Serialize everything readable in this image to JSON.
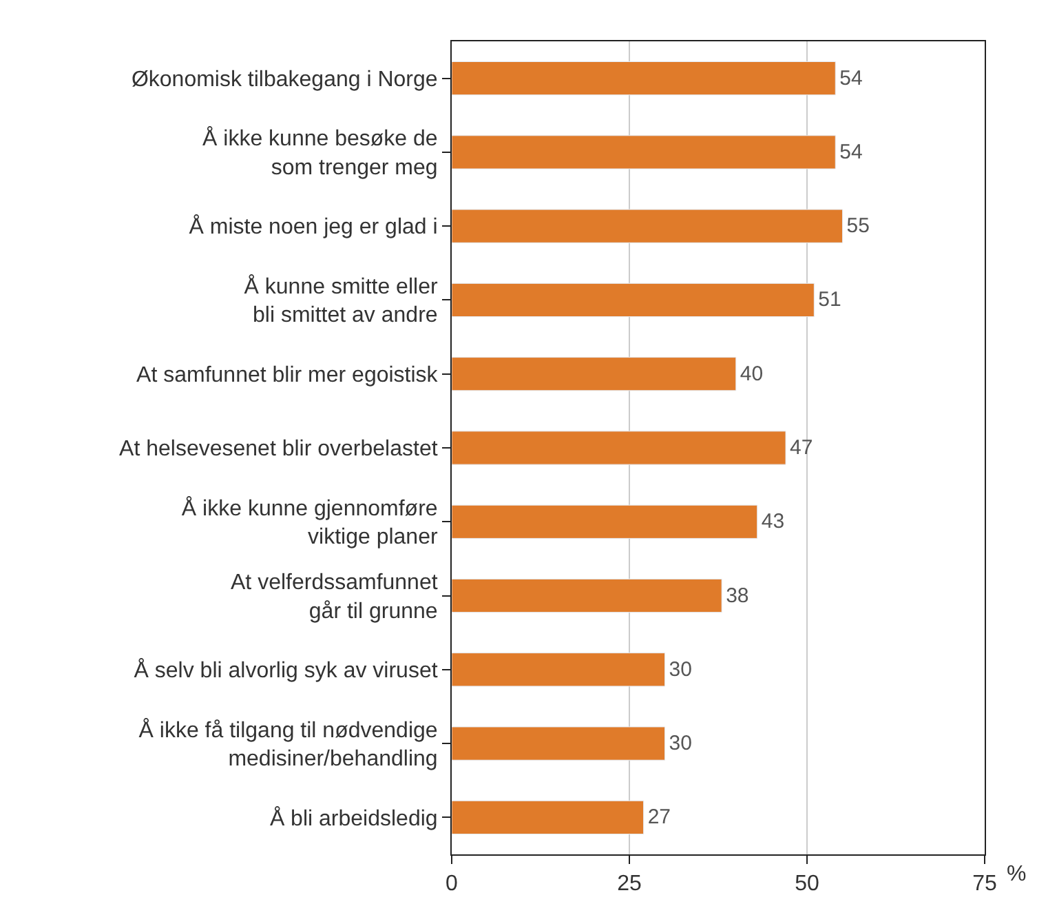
{
  "chart_data": {
    "type": "bar",
    "orientation": "horizontal",
    "xlabel": "%",
    "categories": [
      "Økonomisk tilbakegang i Norge",
      "Å ikke kunne besøke de\nsom trenger meg",
      "Å miste noen jeg er glad i",
      "Å kunne smitte eller\nbli smittet av andre",
      "At samfunnet blir mer egoistisk",
      "At helsevesenet blir overbelastet",
      "Å ikke kunne gjennomføre\nviktige planer",
      "At velferdssamfunnet\ngår til grunne",
      "Å selv bli alvorlig syk av viruset",
      "Å ikke få tilgang til nødvendige\nmedisiner/behandling",
      "Å bli arbeidsledig"
    ],
    "values": [
      54,
      54,
      55,
      51,
      40,
      47,
      43,
      38,
      30,
      30,
      27
    ],
    "color": "#e07b2a",
    "xlim": [
      0,
      75
    ],
    "xticks": [
      0,
      25,
      50,
      75
    ],
    "grid": "x",
    "data_labels": true
  }
}
